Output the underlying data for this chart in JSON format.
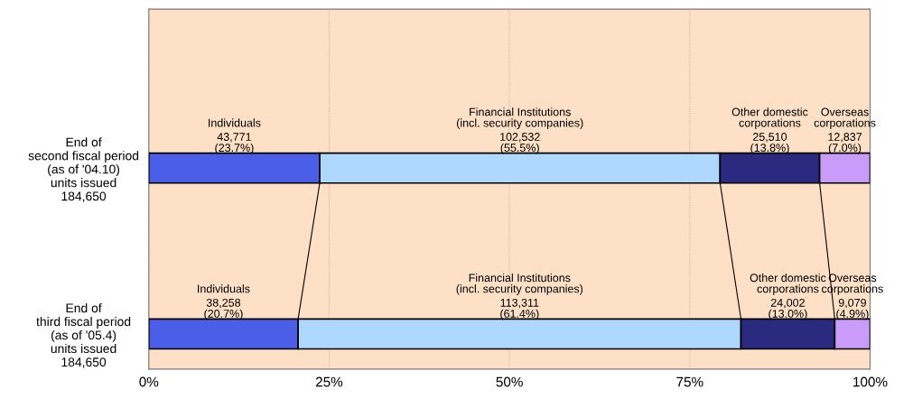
{
  "chart_data": {
    "type": "bar",
    "orientation": "horizontal",
    "stacked": true,
    "categories": [
      "End of\nsecond fiscal period\n(as of '04.10)\nunits issued\n184,650",
      "End of\nthird fiscal period\n(as of '05.4)\nunits issued\n184,650"
    ],
    "series": [
      {
        "name": "Individuals",
        "color": "#4a5ee8",
        "values": [
          23.7,
          20.7
        ],
        "value_labels": [
          "43,771\n(23.7%)",
          "38,258\n(20.7%)"
        ]
      },
      {
        "name": "Financial Institutions\n(incl. security companies)",
        "color": "#aed8ff",
        "values": [
          55.5,
          61.4
        ],
        "value_labels": [
          "102,532\n(55.5%)",
          "113,311\n(61.4%)"
        ]
      },
      {
        "name": "Other domestic\ncorporations",
        "color": "#2a2a80",
        "values": [
          13.8,
          13.0
        ],
        "value_labels": [
          "25,510\n(13.8%)",
          "24,002\n(13.0%)"
        ]
      },
      {
        "name": "Overseas\ncorporations",
        "color": "#c89cf8",
        "values": [
          7.0,
          4.9
        ],
        "value_labels": [
          "12,837\n(7.0%)",
          "9,079\n(4.9%)"
        ]
      }
    ],
    "xlim": [
      0,
      100
    ],
    "xticks": [
      {
        "value": 0,
        "label": "0%"
      },
      {
        "value": 25,
        "label": "25%"
      },
      {
        "value": 50,
        "label": "50%"
      },
      {
        "value": 75,
        "label": "75%"
      },
      {
        "value": 100,
        "label": "100%"
      }
    ],
    "grid": "x"
  }
}
